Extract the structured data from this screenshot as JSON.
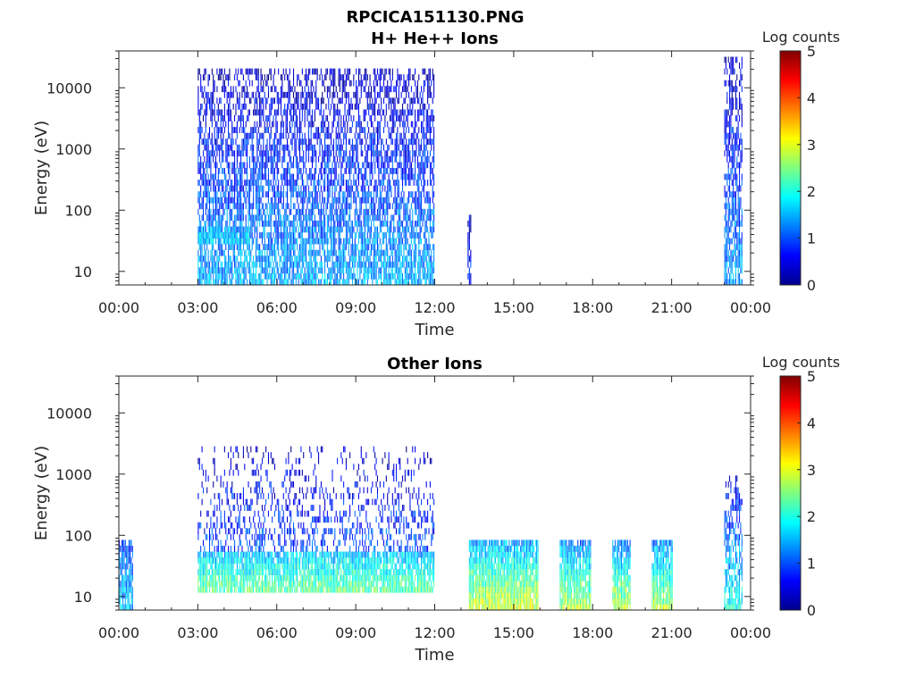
{
  "figure": {
    "title": "RPCICA151130.PNG"
  },
  "chart_data": [
    {
      "type": "heatmap",
      "title": "H+ He++ Ions",
      "xlabel": "Time",
      "ylabel": "Energy (eV)",
      "x_ticks": [
        "00:00",
        "03:00",
        "06:00",
        "09:00",
        "12:00",
        "15:00",
        "18:00",
        "21:00",
        "00:00"
      ],
      "xlim_hours": [
        0,
        24
      ],
      "y_ticks": [
        "10",
        "100",
        "1000",
        "10000"
      ],
      "y_scale": "log",
      "ylim": [
        6,
        40000
      ],
      "colorbar": {
        "label": "Log counts",
        "ticks": [
          "0",
          "1",
          "2",
          "3",
          "4",
          "5"
        ],
        "range": [
          0,
          5
        ],
        "colormap": "jet"
      },
      "regions": [
        {
          "t_start": 3.0,
          "t_end": 12.0,
          "e_min": 6,
          "e_max": 20000,
          "level_low_energy": 1.5,
          "level_high_energy": 0.3,
          "density_high": 0.45,
          "density_low": 0.8
        },
        {
          "t_start": 3.0,
          "t_end": 5.0,
          "e_min": 30,
          "e_max": 50,
          "level_low_energy": 1.7,
          "level_high_energy": 1.5,
          "density_high": 0.8,
          "density_low": 0.8
        },
        {
          "t_start": 13.25,
          "t_end": 13.4,
          "e_min": 6,
          "e_max": 80,
          "level_low_energy": 0.8,
          "level_high_energy": 0.4,
          "density_high": 0.6,
          "density_low": 0.8
        },
        {
          "t_start": 23.0,
          "t_end": 23.7,
          "e_min": 6,
          "e_max": 30000,
          "level_low_energy": 1.4,
          "level_high_energy": 0.3,
          "density_high": 0.45,
          "density_low": 0.8
        }
      ]
    },
    {
      "type": "heatmap",
      "title": "Other Ions",
      "xlabel": "Time",
      "ylabel": "Energy (eV)",
      "x_ticks": [
        "00:00",
        "03:00",
        "06:00",
        "09:00",
        "12:00",
        "15:00",
        "18:00",
        "21:00",
        "00:00"
      ],
      "xlim_hours": [
        0,
        24
      ],
      "y_ticks": [
        "10",
        "100",
        "1000",
        "10000"
      ],
      "y_scale": "log",
      "ylim": [
        6,
        40000
      ],
      "colorbar": {
        "label": "Log counts",
        "ticks": [
          "0",
          "1",
          "2",
          "3",
          "4",
          "5"
        ],
        "range": [
          0,
          5
        ],
        "colormap": "jet"
      },
      "regions": [
        {
          "t_start": 0.0,
          "t_end": 0.55,
          "e_min": 6,
          "e_max": 80,
          "level_low_energy": 1.6,
          "level_high_energy": 1.0,
          "density_high": 0.8,
          "density_low": 0.9
        },
        {
          "t_start": 3.0,
          "t_end": 12.0,
          "e_min": 12,
          "e_max": 50,
          "level_low_energy": 2.4,
          "level_high_energy": 1.6,
          "density_high": 0.85,
          "density_low": 0.9
        },
        {
          "t_start": 3.0,
          "t_end": 12.0,
          "e_min": 50,
          "e_max": 3000,
          "level_low_energy": 1.0,
          "level_high_energy": 0.3,
          "density_high": 0.12,
          "density_low": 0.35
        },
        {
          "t_start": 13.3,
          "t_end": 15.95,
          "e_min": 6,
          "e_max": 80,
          "level_low_energy": 3.0,
          "level_high_energy": 1.4,
          "density_high": 0.9,
          "density_low": 0.97
        },
        {
          "t_start": 16.75,
          "t_end": 17.95,
          "e_min": 6,
          "e_max": 80,
          "level_low_energy": 2.8,
          "level_high_energy": 1.3,
          "density_high": 0.85,
          "density_low": 0.95
        },
        {
          "t_start": 18.75,
          "t_end": 19.45,
          "e_min": 6,
          "e_max": 80,
          "level_low_energy": 2.9,
          "level_high_energy": 1.2,
          "density_high": 0.85,
          "density_low": 0.95
        },
        {
          "t_start": 20.25,
          "t_end": 21.05,
          "e_min": 6,
          "e_max": 80,
          "level_low_energy": 2.8,
          "level_high_energy": 1.3,
          "density_high": 0.85,
          "density_low": 0.95
        },
        {
          "t_start": 23.0,
          "t_end": 23.7,
          "e_min": 6,
          "e_max": 1000,
          "level_low_energy": 2.0,
          "level_high_energy": 0.5,
          "density_high": 0.35,
          "density_low": 0.85
        }
      ]
    }
  ]
}
